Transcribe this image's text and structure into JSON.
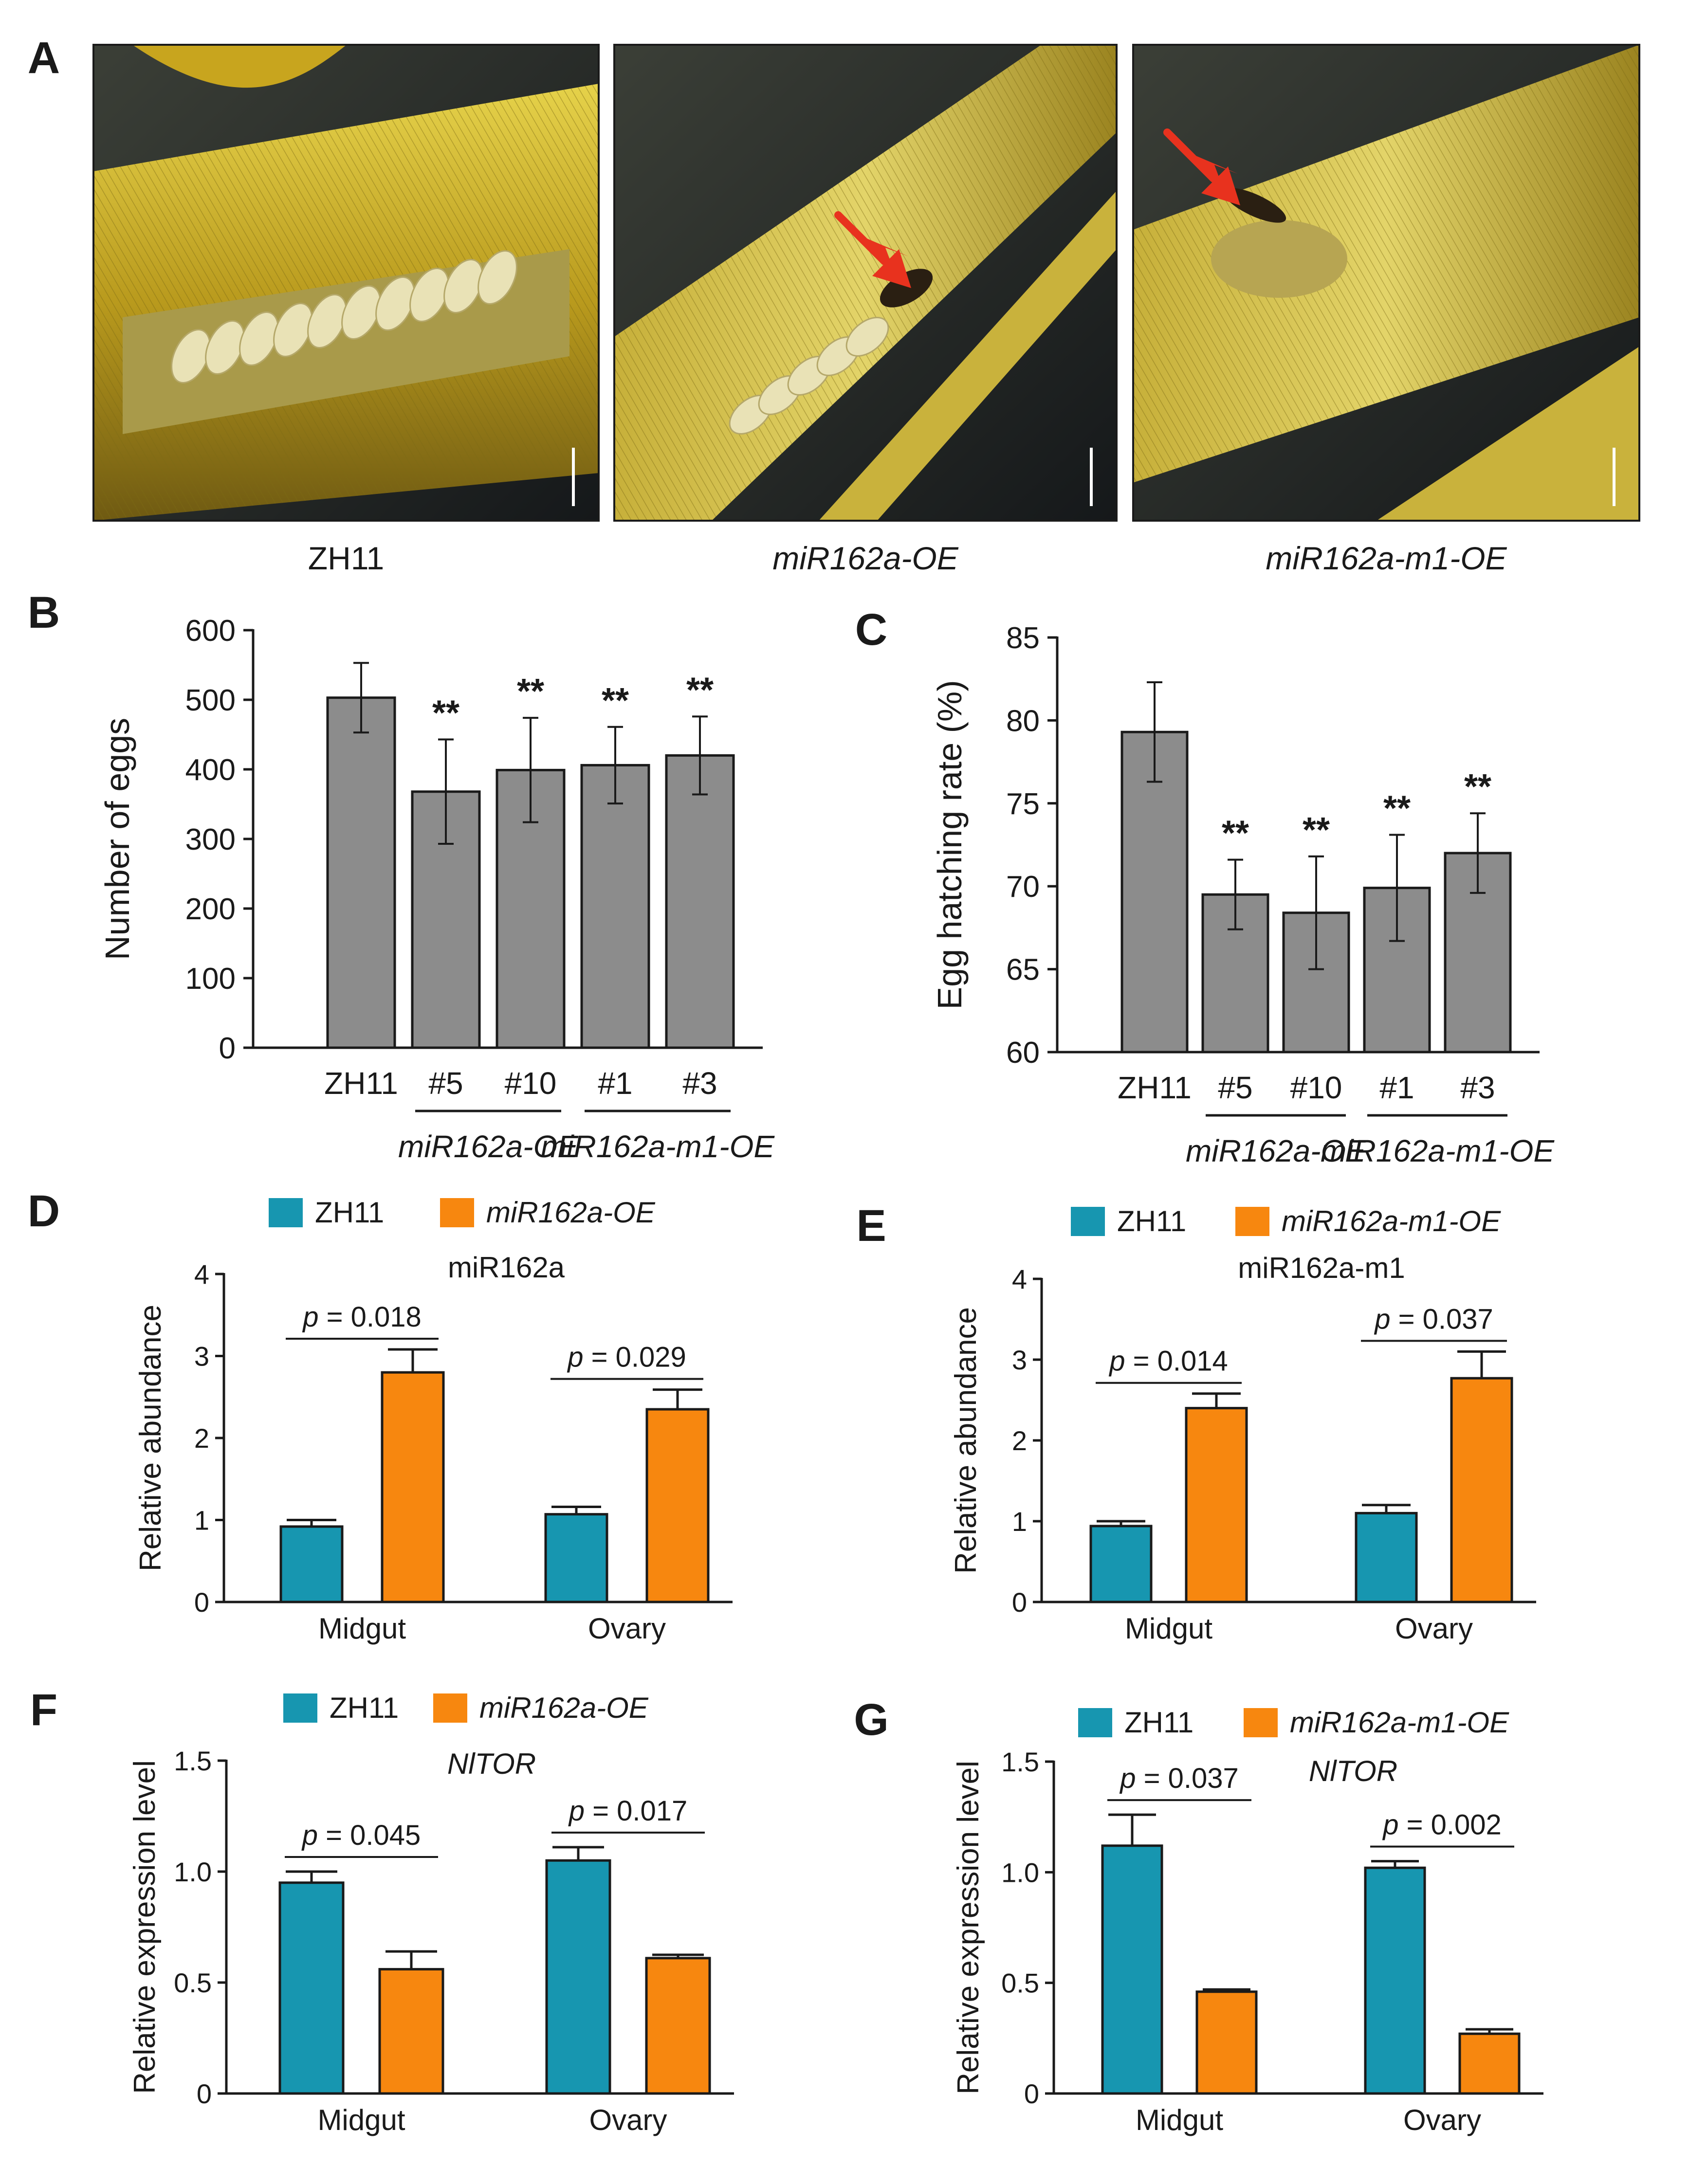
{
  "colors": {
    "bar_gray": "#8c8c8c",
    "zh11": "#1796b0",
    "oe": "#f7870f",
    "arrow": "#e8321e",
    "stem_light": "#d8c23a",
    "stem_dark": "#6f5a12",
    "egg": "#e9e2b6"
  },
  "panel_letters": [
    "A",
    "B",
    "C",
    "D",
    "E",
    "F",
    "G"
  ],
  "photos": [
    {
      "name": "photo-zh11",
      "caption": "ZH11",
      "italic": false,
      "arrow": false
    },
    {
      "name": "photo-mir162a-oe",
      "caption": "miR162a-OE",
      "italic": true,
      "arrow": true
    },
    {
      "name": "photo-mir162a-m1-oe",
      "caption": "miR162a-m1-OE",
      "italic": true,
      "arrow": true
    }
  ],
  "chart_data": [
    {
      "panel": "B",
      "type": "bar",
      "ylabel": "Number of eggs",
      "ylim": [
        0,
        600
      ],
      "yticks": [
        0,
        100,
        200,
        300,
        400,
        500,
        600
      ],
      "ytick_labels": [
        "0",
        "100",
        "200",
        "300",
        "400",
        "500",
        "600"
      ],
      "categories": [
        "ZH11",
        "#5",
        "#10",
        "#1",
        "#3"
      ],
      "values": [
        503,
        368,
        399,
        406,
        420
      ],
      "errors": [
        50,
        75,
        75,
        55,
        56
      ],
      "significance": [
        "",
        "**",
        "**",
        "**",
        "**"
      ],
      "groups": [
        {
          "label": "miR162a-OE",
          "from": 1,
          "to": 2
        },
        {
          "label": "miR162a-m1-OE",
          "from": 3,
          "to": 4
        }
      ]
    },
    {
      "panel": "C",
      "type": "bar",
      "ylabel": "Egg hatching rate (%)",
      "ylim": [
        60,
        85
      ],
      "yticks": [
        60,
        65,
        70,
        75,
        80,
        85
      ],
      "ytick_labels": [
        "60",
        "65",
        "70",
        "75",
        "80",
        "85"
      ],
      "categories": [
        "ZH11",
        "#5",
        "#10",
        "#1",
        "#3"
      ],
      "values": [
        79.3,
        69.5,
        68.4,
        69.9,
        72.0
      ],
      "errors": [
        3.0,
        2.1,
        3.4,
        3.2,
        2.4
      ],
      "significance": [
        "",
        "**",
        "**",
        "**",
        "**"
      ],
      "groups": [
        {
          "label": "miR162a-OE",
          "from": 1,
          "to": 2
        },
        {
          "label": "miR162a-m1-OE",
          "from": 3,
          "to": 4
        }
      ]
    },
    {
      "panel": "D",
      "type": "bar",
      "title": "miR162a",
      "ylabel": "Relative abundance",
      "ylim": [
        0,
        4
      ],
      "yticks": [
        0,
        1,
        2,
        3,
        4
      ],
      "ytick_labels": [
        "0",
        "1",
        "2",
        "3",
        "4"
      ],
      "categories": [
        "Midgut",
        "Ovary"
      ],
      "series": [
        {
          "name": "ZH11",
          "values": [
            0.92,
            1.07
          ],
          "errors": [
            0.08,
            0.09
          ]
        },
        {
          "name": "miR162a-OE",
          "values": [
            2.8,
            2.35
          ],
          "errors": [
            0.28,
            0.24
          ]
        }
      ],
      "pvalues": [
        "p = 0.018",
        "p = 0.029"
      ]
    },
    {
      "panel": "E",
      "type": "bar",
      "title": "miR162a-m1",
      "ylabel": "Relative abundance",
      "ylim": [
        0,
        4
      ],
      "yticks": [
        0,
        1,
        2,
        3,
        4
      ],
      "ytick_labels": [
        "0",
        "1",
        "2",
        "3",
        "4"
      ],
      "categories": [
        "Midgut",
        "Ovary"
      ],
      "series": [
        {
          "name": "ZH11",
          "values": [
            0.94,
            1.1
          ],
          "errors": [
            0.06,
            0.1
          ]
        },
        {
          "name": "miR162a-m1-OE",
          "values": [
            2.4,
            2.77
          ],
          "errors": [
            0.18,
            0.33
          ]
        }
      ],
      "pvalues": [
        "p = 0.014",
        "p = 0.037"
      ]
    },
    {
      "panel": "F",
      "type": "bar",
      "title": "NlTOR",
      "ylabel": "Relative expression level",
      "ylim": [
        0,
        1.5
      ],
      "yticks": [
        0,
        0.5,
        1.0,
        1.5
      ],
      "ytick_labels": [
        "0",
        "0.5",
        "1.0",
        "1.5"
      ],
      "categories": [
        "Midgut",
        "Ovary"
      ],
      "series": [
        {
          "name": "ZH11",
          "values": [
            0.95,
            1.05
          ],
          "errors": [
            0.05,
            0.06
          ]
        },
        {
          "name": "miR162a-OE",
          "values": [
            0.56,
            0.61
          ],
          "errors": [
            0.08,
            0.015
          ]
        }
      ],
      "pvalues": [
        "p = 0.045",
        "p = 0.017"
      ]
    },
    {
      "panel": "G",
      "type": "bar",
      "title": "NlTOR",
      "ylabel": "Relative expression level",
      "ylim": [
        0,
        1.5
      ],
      "yticks": [
        0,
        0.5,
        1.0,
        1.5
      ],
      "ytick_labels": [
        "0",
        "0.5",
        "1.0",
        "1.5"
      ],
      "categories": [
        "Midgut",
        "Ovary"
      ],
      "series": [
        {
          "name": "ZH11",
          "values": [
            1.12,
            1.02
          ],
          "errors": [
            0.14,
            0.03
          ]
        },
        {
          "name": "miR162a-m1-OE",
          "values": [
            0.46,
            0.27
          ],
          "errors": [
            0.01,
            0.02
          ]
        }
      ],
      "pvalues": [
        "p = 0.037",
        "p = 0.002"
      ]
    }
  ]
}
